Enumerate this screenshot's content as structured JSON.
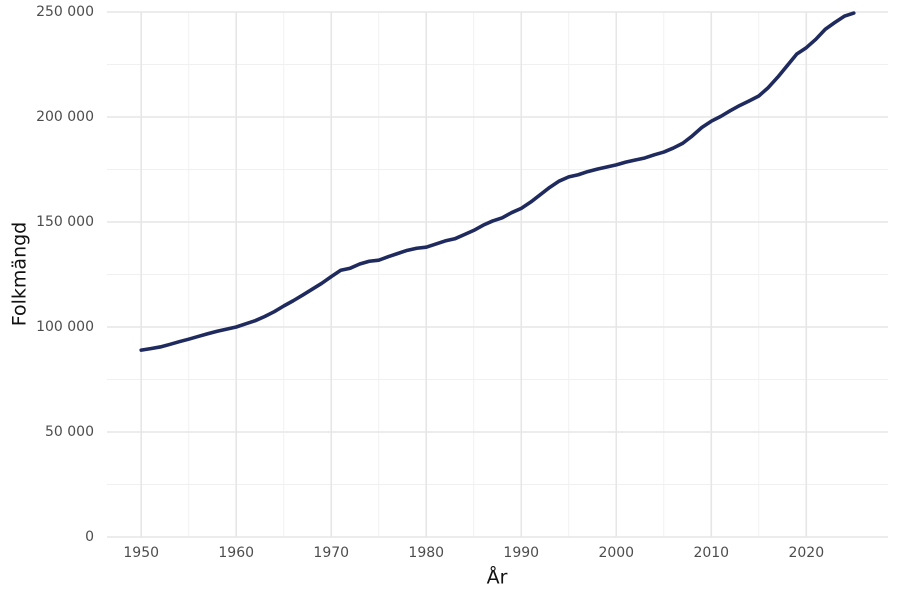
{
  "chart_data": {
    "type": "line",
    "x_label": "År",
    "y_label": "Folkmängd",
    "x": [
      1950,
      1951,
      1952,
      1953,
      1954,
      1955,
      1956,
      1957,
      1958,
      1959,
      1960,
      1961,
      1962,
      1963,
      1964,
      1965,
      1966,
      1967,
      1968,
      1969,
      1970,
      1971,
      1972,
      1973,
      1974,
      1975,
      1976,
      1977,
      1978,
      1979,
      1980,
      1981,
      1982,
      1983,
      1984,
      1985,
      1986,
      1987,
      1988,
      1989,
      1990,
      1991,
      1992,
      1993,
      1994,
      1995,
      1996,
      1997,
      1998,
      1999,
      2000,
      2001,
      2002,
      2003,
      2004,
      2005,
      2006,
      2007,
      2008,
      2009,
      2010,
      2011,
      2012,
      2013,
      2014,
      2015,
      2016,
      2017,
      2018,
      2019,
      2020,
      2021,
      2022,
      2023,
      2024,
      2025
    ],
    "values": [
      89000,
      89700,
      90500,
      91700,
      93000,
      94200,
      95500,
      96800,
      98000,
      99000,
      100000,
      101500,
      103000,
      105000,
      107300,
      110000,
      112500,
      115200,
      118000,
      120800,
      124000,
      127000,
      128000,
      130000,
      131300,
      131800,
      133500,
      135000,
      136500,
      137500,
      138000,
      139500,
      141000,
      142000,
      144000,
      146000,
      148500,
      150500,
      152000,
      154500,
      156500,
      159500,
      163000,
      166500,
      169500,
      171500,
      172500,
      174000,
      175200,
      176200,
      177200,
      178500,
      179500,
      180500,
      182000,
      183300,
      185200,
      187500,
      191000,
      195000,
      198000,
      200300,
      203000,
      205500,
      207700,
      210000,
      214000,
      219000,
      224500,
      230000,
      233000,
      237000,
      241800,
      245000,
      248000,
      249500
    ],
    "color": "#1f2a5e",
    "xlim": [
      1946.4,
      2028.6
    ],
    "xticks": [
      1950,
      1960,
      1970,
      1980,
      1990,
      2000,
      2010,
      2020
    ],
    "ylim": [
      0,
      250000
    ],
    "yticks": [
      0,
      {
        "value": 50000,
        "label": "50 000"
      },
      {
        "value": 100000,
        "label": "100 000"
      },
      {
        "value": 150000,
        "label": "150 000"
      },
      {
        "value": 200000,
        "label": "200 000"
      },
      {
        "value": 250000,
        "label": "250 000"
      }
    ],
    "grid": true
  }
}
